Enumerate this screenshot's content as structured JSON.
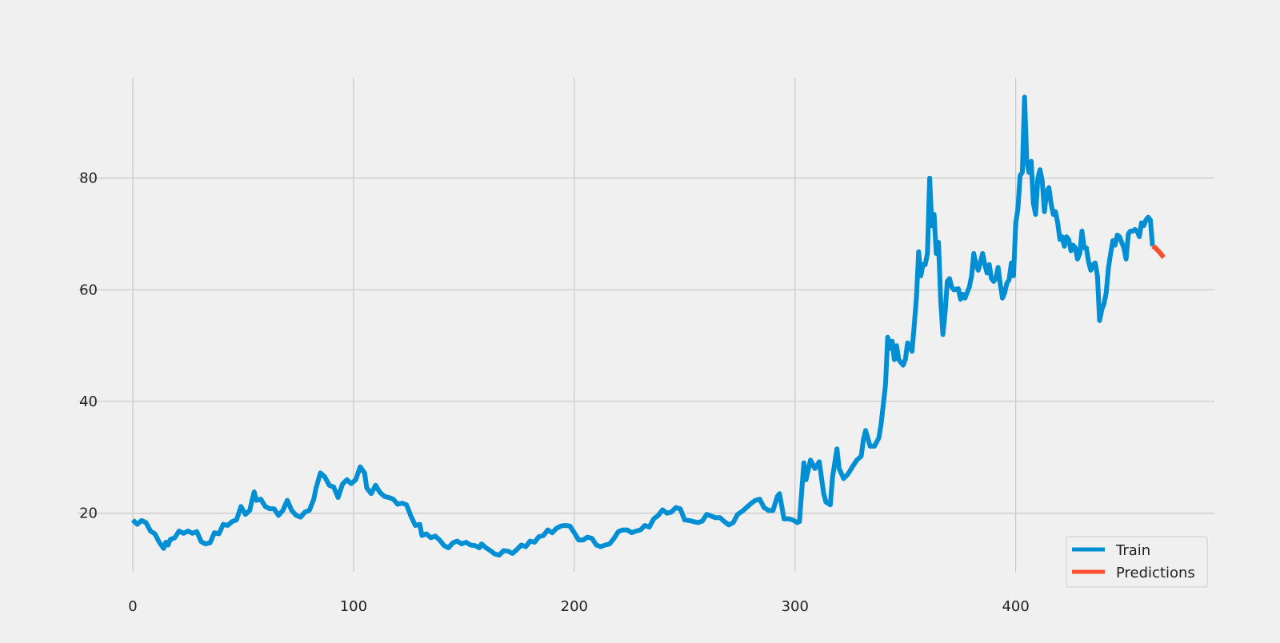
{
  "chart_data": {
    "type": "line",
    "title": "",
    "xlabel": "",
    "ylabel": "",
    "xlim": [
      -25,
      490
    ],
    "ylim": [
      9.5,
      98
    ],
    "xticks": [
      0,
      100,
      200,
      300,
      400
    ],
    "yticks": [
      20,
      40,
      60,
      80
    ],
    "xtick_labels": [
      "0",
      "100",
      "200",
      "300",
      "400"
    ],
    "ytick_labels": [
      "20",
      "40",
      "60",
      "80"
    ],
    "grid": true,
    "legend_position": "lower-right",
    "series": [
      {
        "name": "Train",
        "color": "#008fd5",
        "points": [
          [
            0,
            18.8
          ],
          [
            2,
            18.0
          ],
          [
            4,
            18.7
          ],
          [
            6,
            18.3
          ],
          [
            8,
            16.8
          ],
          [
            10,
            16.3
          ],
          [
            12,
            14.8
          ],
          [
            14,
            13.7
          ],
          [
            15,
            14.8
          ],
          [
            16,
            14.3
          ],
          [
            17,
            15.3
          ],
          [
            19,
            15.6
          ],
          [
            21,
            16.8
          ],
          [
            23,
            16.4
          ],
          [
            25,
            16.8
          ],
          [
            27,
            16.4
          ],
          [
            29,
            16.7
          ],
          [
            31,
            14.9
          ],
          [
            33,
            14.5
          ],
          [
            35,
            14.7
          ],
          [
            37,
            16.5
          ],
          [
            39,
            16.3
          ],
          [
            41,
            18.0
          ],
          [
            43,
            17.8
          ],
          [
            45,
            18.5
          ],
          [
            47,
            18.8
          ],
          [
            49,
            21.2
          ],
          [
            51,
            19.8
          ],
          [
            53,
            20.5
          ],
          [
            54,
            22.3
          ],
          [
            55,
            23.8
          ],
          [
            56,
            22.3
          ],
          [
            58,
            22.5
          ],
          [
            60,
            21.2
          ],
          [
            62,
            20.8
          ],
          [
            64,
            20.8
          ],
          [
            66,
            19.6
          ],
          [
            68,
            20.5
          ],
          [
            70,
            22.3
          ],
          [
            72,
            20.5
          ],
          [
            74,
            19.6
          ],
          [
            76,
            19.3
          ],
          [
            78,
            20.2
          ],
          [
            80,
            20.5
          ],
          [
            82,
            22.5
          ],
          [
            83,
            24.5
          ],
          [
            85,
            27.2
          ],
          [
            87,
            26.5
          ],
          [
            89,
            25.0
          ],
          [
            91,
            24.7
          ],
          [
            93,
            22.8
          ],
          [
            95,
            25.2
          ],
          [
            97,
            26.0
          ],
          [
            99,
            25.3
          ],
          [
            101,
            26.0
          ],
          [
            103,
            28.3
          ],
          [
            105,
            27.2
          ],
          [
            106,
            24.5
          ],
          [
            108,
            23.5
          ],
          [
            110,
            25.0
          ],
          [
            112,
            23.7
          ],
          [
            114,
            23.0
          ],
          [
            116,
            22.8
          ],
          [
            118,
            22.5
          ],
          [
            120,
            21.6
          ],
          [
            122,
            21.8
          ],
          [
            124,
            21.5
          ],
          [
            126,
            19.5
          ],
          [
            128,
            17.8
          ],
          [
            130,
            18.0
          ],
          [
            131,
            16.0
          ],
          [
            133,
            16.3
          ],
          [
            135,
            15.6
          ],
          [
            137,
            15.9
          ],
          [
            139,
            15.2
          ],
          [
            141,
            14.2
          ],
          [
            143,
            13.8
          ],
          [
            145,
            14.7
          ],
          [
            147,
            15.0
          ],
          [
            149,
            14.5
          ],
          [
            151,
            14.8
          ],
          [
            153,
            14.3
          ],
          [
            155,
            14.2
          ],
          [
            157,
            13.8
          ],
          [
            158,
            14.5
          ],
          [
            160,
            13.8
          ],
          [
            162,
            13.3
          ],
          [
            164,
            12.7
          ],
          [
            166,
            12.5
          ],
          [
            168,
            13.3
          ],
          [
            170,
            13.2
          ],
          [
            172,
            12.8
          ],
          [
            174,
            13.5
          ],
          [
            176,
            14.3
          ],
          [
            178,
            14.0
          ],
          [
            180,
            15.0
          ],
          [
            182,
            14.8
          ],
          [
            184,
            15.8
          ],
          [
            186,
            16.0
          ],
          [
            188,
            17.0
          ],
          [
            190,
            16.5
          ],
          [
            192,
            17.3
          ],
          [
            194,
            17.7
          ],
          [
            196,
            17.8
          ],
          [
            198,
            17.7
          ],
          [
            200,
            16.5
          ],
          [
            202,
            15.2
          ],
          [
            204,
            15.2
          ],
          [
            206,
            15.7
          ],
          [
            208,
            15.5
          ],
          [
            210,
            14.3
          ],
          [
            212,
            14.0
          ],
          [
            214,
            14.3
          ],
          [
            216,
            14.5
          ],
          [
            218,
            15.5
          ],
          [
            220,
            16.7
          ],
          [
            222,
            17.0
          ],
          [
            224,
            17.0
          ],
          [
            226,
            16.5
          ],
          [
            228,
            16.8
          ],
          [
            230,
            17.0
          ],
          [
            232,
            17.8
          ],
          [
            234,
            17.5
          ],
          [
            236,
            19.0
          ],
          [
            238,
            19.6
          ],
          [
            240,
            20.6
          ],
          [
            242,
            20.0
          ],
          [
            244,
            20.2
          ],
          [
            246,
            21.0
          ],
          [
            248,
            20.8
          ],
          [
            250,
            18.8
          ],
          [
            252,
            18.7
          ],
          [
            254,
            18.5
          ],
          [
            256,
            18.3
          ],
          [
            258,
            18.6
          ],
          [
            260,
            19.8
          ],
          [
            262,
            19.5
          ],
          [
            264,
            19.2
          ],
          [
            266,
            19.2
          ],
          [
            268,
            18.5
          ],
          [
            270,
            17.9
          ],
          [
            272,
            18.3
          ],
          [
            274,
            19.8
          ],
          [
            276,
            20.3
          ],
          [
            278,
            21.0
          ],
          [
            280,
            21.7
          ],
          [
            282,
            22.3
          ],
          [
            284,
            22.5
          ],
          [
            286,
            21.0
          ],
          [
            288,
            20.5
          ],
          [
            290,
            20.5
          ],
          [
            292,
            23.0
          ],
          [
            293,
            23.5
          ],
          [
            295,
            19.0
          ],
          [
            297,
            19.0
          ],
          [
            299,
            18.8
          ],
          [
            301,
            18.3
          ],
          [
            302,
            18.5
          ],
          [
            304,
            29.0
          ],
          [
            305,
            26.0
          ],
          [
            307,
            29.5
          ],
          [
            309,
            28.0
          ],
          [
            311,
            29.2
          ],
          [
            313,
            23.5
          ],
          [
            314,
            22.0
          ],
          [
            316,
            21.5
          ],
          [
            317,
            26.5
          ],
          [
            319,
            31.5
          ],
          [
            320,
            28.0
          ],
          [
            322,
            26.2
          ],
          [
            324,
            27.0
          ],
          [
            326,
            28.3
          ],
          [
            328,
            29.5
          ],
          [
            330,
            30.2
          ],
          [
            331,
            33.2
          ],
          [
            332,
            34.8
          ],
          [
            334,
            32.0
          ],
          [
            336,
            32.0
          ],
          [
            338,
            33.5
          ],
          [
            339,
            36.0
          ],
          [
            341,
            43.0
          ],
          [
            342,
            51.5
          ],
          [
            343,
            49.5
          ],
          [
            344,
            50.8
          ],
          [
            345,
            47.5
          ],
          [
            346,
            50.0
          ],
          [
            347,
            47.5
          ],
          [
            349,
            46.5
          ],
          [
            350,
            47.5
          ],
          [
            351,
            50.5
          ],
          [
            353,
            49.0
          ],
          [
            354,
            53.5
          ],
          [
            355,
            58.5
          ],
          [
            356,
            66.8
          ],
          [
            357,
            62.5
          ],
          [
            358,
            64.5
          ],
          [
            359,
            64.5
          ],
          [
            360,
            66.5
          ],
          [
            361,
            80.0
          ],
          [
            362,
            71.5
          ],
          [
            363,
            73.5
          ],
          [
            364,
            66.5
          ],
          [
            365,
            68.5
          ],
          [
            366,
            58.0
          ],
          [
            367,
            52.0
          ],
          [
            368,
            56.0
          ],
          [
            369,
            61.5
          ],
          [
            370,
            62.0
          ],
          [
            371,
            60.5
          ],
          [
            372,
            60.0
          ],
          [
            374,
            60.2
          ],
          [
            375,
            58.3
          ],
          [
            376,
            59.2
          ],
          [
            377,
            58.5
          ],
          [
            379,
            60.5
          ],
          [
            380,
            62.5
          ],
          [
            381,
            66.5
          ],
          [
            382,
            64.5
          ],
          [
            383,
            63.5
          ],
          [
            385,
            66.5
          ],
          [
            386,
            64.5
          ],
          [
            387,
            63.0
          ],
          [
            388,
            64.5
          ],
          [
            389,
            62.0
          ],
          [
            390,
            61.5
          ],
          [
            391,
            62.0
          ],
          [
            392,
            64.0
          ],
          [
            393,
            61.0
          ],
          [
            394,
            58.5
          ],
          [
            395,
            59.5
          ],
          [
            396,
            61.2
          ],
          [
            397,
            61.8
          ],
          [
            398,
            64.8
          ],
          [
            399,
            62.5
          ],
          [
            400,
            72.0
          ],
          [
            401,
            74.5
          ],
          [
            402,
            80.5
          ],
          [
            403,
            81.0
          ],
          [
            404,
            94.5
          ],
          [
            405,
            83.0
          ],
          [
            406,
            81.0
          ],
          [
            407,
            83.0
          ],
          [
            408,
            75.5
          ],
          [
            409,
            73.5
          ],
          [
            410,
            80.0
          ],
          [
            411,
            81.5
          ],
          [
            412,
            79.5
          ],
          [
            413,
            74.0
          ],
          [
            414,
            77.5
          ],
          [
            415,
            78.3
          ],
          [
            416,
            75.5
          ],
          [
            417,
            73.5
          ],
          [
            418,
            74.0
          ],
          [
            419,
            72.0
          ],
          [
            420,
            69.0
          ],
          [
            421,
            69.5
          ],
          [
            422,
            67.8
          ],
          [
            423,
            69.5
          ],
          [
            424,
            69.0
          ],
          [
            425,
            67.0
          ],
          [
            426,
            68.0
          ],
          [
            427,
            67.5
          ],
          [
            428,
            65.5
          ],
          [
            429,
            66.5
          ],
          [
            430,
            70.5
          ],
          [
            431,
            67.5
          ],
          [
            432,
            67.5
          ],
          [
            433,
            65.0
          ],
          [
            434,
            63.5
          ],
          [
            435,
            64.5
          ],
          [
            436,
            64.8
          ],
          [
            437,
            62.5
          ],
          [
            438,
            54.5
          ],
          [
            439,
            56.5
          ],
          [
            440,
            57.5
          ],
          [
            441,
            59.5
          ],
          [
            442,
            64.0
          ],
          [
            443,
            66.5
          ],
          [
            444,
            68.8
          ],
          [
            445,
            68.0
          ],
          [
            446,
            69.8
          ],
          [
            447,
            69.5
          ],
          [
            448,
            68.5
          ],
          [
            449,
            67.5
          ],
          [
            450,
            65.5
          ],
          [
            451,
            70.0
          ],
          [
            452,
            70.5
          ],
          [
            453,
            70.5
          ],
          [
            454,
            70.8
          ],
          [
            455,
            70.5
          ],
          [
            456,
            69.5
          ],
          [
            457,
            72.0
          ],
          [
            458,
            71.5
          ],
          [
            459,
            72.5
          ],
          [
            460,
            73.0
          ],
          [
            461,
            72.5
          ],
          [
            462,
            67.8
          ]
        ]
      },
      {
        "name": "Predictions",
        "color": "#fc4f30",
        "points": [
          [
            462,
            67.8
          ],
          [
            463,
            67.6
          ],
          [
            464,
            67.2
          ],
          [
            465,
            66.8
          ],
          [
            466,
            66.3
          ],
          [
            467,
            65.8
          ]
        ]
      }
    ]
  }
}
